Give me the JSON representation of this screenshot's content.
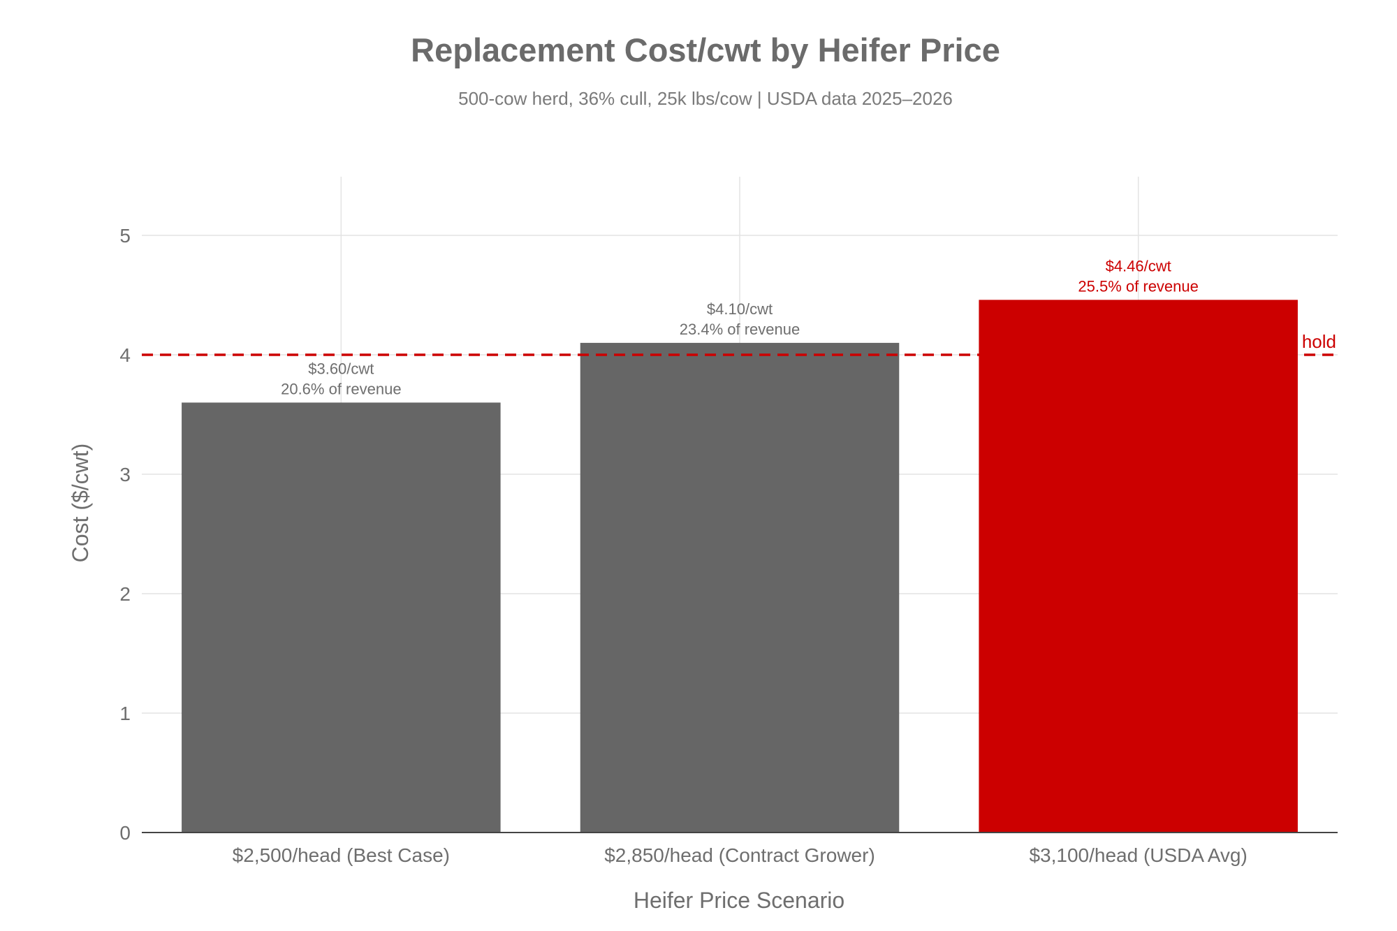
{
  "colors": {
    "background": "#ffffff",
    "title": "#6b6b6b",
    "text": "#6e6e6e",
    "grid": "#e3e3e3",
    "axis": "#444444",
    "bar_default": "#666666",
    "bar_highlight": "#cc0000",
    "reference": "#cc0000"
  },
  "chart_data": {
    "type": "bar",
    "title": "Replacement Cost/cwt by Heifer Price",
    "subtitle": "500-cow herd, 36% cull, 25k lbs/cow | USDA data 2025–2026",
    "xlabel": "Heifer Price Scenario",
    "ylabel": "Cost ($/cwt)",
    "ylim": [
      0,
      5.5
    ],
    "yticks": [
      0,
      1,
      2,
      3,
      4,
      5
    ],
    "ytick_labels": [
      "0",
      "1",
      "2",
      "3",
      "4",
      "5"
    ],
    "grid": true,
    "legend": false,
    "categories": [
      "$2,500/head (Best Case)",
      "$2,850/head (Contract Grower)",
      "$3,100/head (USDA Avg)"
    ],
    "values": [
      3.6,
      4.1,
      4.46
    ],
    "bar_colors": [
      "#666666",
      "#666666",
      "#cc0000"
    ],
    "data_labels": [
      [
        "$3.60/cwt",
        "20.6% of revenue"
      ],
      [
        "$4.10/cwt",
        "23.4% of revenue"
      ],
      [
        "$4.46/cwt",
        "25.5% of revenue"
      ]
    ],
    "data_label_colors": [
      "#6e6e6e",
      "#6e6e6e",
      "#cc0000"
    ],
    "reference_line": {
      "y": 4,
      "style": "dashed",
      "color": "#cc0000",
      "label": "hold"
    }
  }
}
